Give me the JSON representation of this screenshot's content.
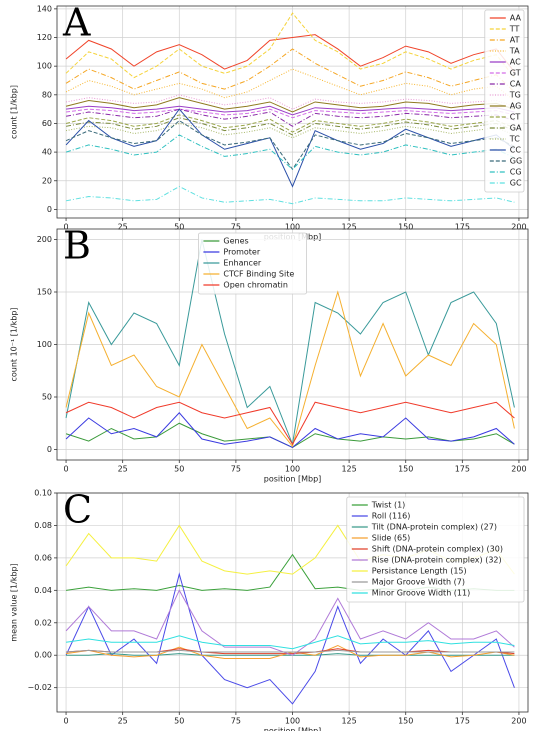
{
  "chart_data": [
    {
      "type": "line",
      "panel": "A",
      "xlabel": "position [Mbp]",
      "ylabel": "count [1/kbp]",
      "grid": true,
      "legend": "upper right",
      "x": [
        0,
        10,
        20,
        30,
        40,
        50,
        60,
        70,
        80,
        90,
        100,
        110,
        120,
        130,
        140,
        150,
        160,
        170,
        180,
        190,
        198
      ],
      "xlim": [
        -4,
        204
      ],
      "xticks": [
        0,
        25,
        50,
        75,
        100,
        125,
        150,
        175,
        200
      ],
      "ylim": [
        -6,
        142
      ],
      "yticks": [
        0,
        20,
        40,
        60,
        80,
        100,
        120,
        140
      ],
      "series": [
        {
          "name": "AA",
          "color": "#f0442a",
          "linestyle": "solid",
          "values": [
            105,
            118,
            112,
            100,
            110,
            115,
            108,
            98,
            104,
            118,
            120,
            122,
            112,
            100,
            106,
            114,
            110,
            102,
            108,
            112,
            96
          ]
        },
        {
          "name": "TT",
          "color": "#f5d33a",
          "linestyle": "dashed",
          "values": [
            95,
            110,
            105,
            92,
            100,
            112,
            100,
            95,
            100,
            112,
            137,
            118,
            110,
            98,
            102,
            110,
            105,
            98,
            104,
            108,
            92
          ]
        },
        {
          "name": "AT",
          "color": "#f5a623",
          "linestyle": "dashdot",
          "values": [
            88,
            98,
            92,
            84,
            90,
            96,
            88,
            84,
            90,
            100,
            112,
            102,
            94,
            86,
            90,
            96,
            92,
            86,
            90,
            94,
            82
          ]
        },
        {
          "name": "TA",
          "color": "#f7b733",
          "linestyle": "dotted",
          "values": [
            82,
            90,
            86,
            80,
            84,
            88,
            84,
            78,
            82,
            90,
            98,
            92,
            86,
            80,
            84,
            88,
            86,
            80,
            84,
            86,
            76
          ]
        },
        {
          "name": "AC",
          "color": "#9b3fc7",
          "linestyle": "solid",
          "values": [
            70,
            72,
            71,
            69,
            70,
            72,
            70,
            68,
            69,
            72,
            66,
            71,
            70,
            69,
            70,
            71,
            70,
            69,
            70,
            71,
            68
          ]
        },
        {
          "name": "GT",
          "color": "#d36ee8",
          "linestyle": "dashed",
          "values": [
            68,
            70,
            69,
            67,
            68,
            70,
            68,
            66,
            67,
            70,
            64,
            69,
            68,
            67,
            68,
            69,
            68,
            67,
            68,
            69,
            66
          ]
        },
        {
          "name": "CA",
          "color": "#8a2aa8",
          "linestyle": "dashdot",
          "values": [
            65,
            68,
            66,
            64,
            65,
            70,
            66,
            63,
            65,
            68,
            58,
            67,
            65,
            64,
            65,
            67,
            66,
            64,
            65,
            66,
            62
          ]
        },
        {
          "name": "TG",
          "color": "#e89ad4",
          "linestyle": "dotted",
          "values": [
            75,
            78,
            76,
            74,
            75,
            80,
            76,
            73,
            75,
            78,
            70,
            77,
            75,
            74,
            75,
            77,
            76,
            74,
            75,
            76,
            72
          ]
        },
        {
          "name": "AG",
          "color": "#8f7a20",
          "linestyle": "solid",
          "values": [
            72,
            76,
            74,
            71,
            73,
            78,
            74,
            70,
            72,
            75,
            68,
            75,
            73,
            71,
            72,
            75,
            74,
            71,
            73,
            74,
            70
          ]
        },
        {
          "name": "CT",
          "color": "#9aa64a",
          "linestyle": "dashed",
          "values": [
            60,
            64,
            62,
            58,
            60,
            66,
            62,
            57,
            59,
            63,
            54,
            62,
            60,
            58,
            60,
            63,
            61,
            58,
            60,
            62,
            57
          ]
        },
        {
          "name": "GA",
          "color": "#7a8a3a",
          "linestyle": "dashdot",
          "values": [
            58,
            61,
            60,
            56,
            58,
            64,
            60,
            55,
            57,
            60,
            52,
            60,
            58,
            56,
            58,
            61,
            59,
            56,
            58,
            60,
            55
          ]
        },
        {
          "name": "TC",
          "color": "#a8b86a",
          "linestyle": "dotted",
          "values": [
            55,
            58,
            57,
            53,
            55,
            60,
            57,
            52,
            54,
            57,
            50,
            57,
            55,
            53,
            55,
            58,
            56,
            53,
            55,
            57,
            52
          ]
        },
        {
          "name": "CC",
          "color": "#2a4fa8",
          "linestyle": "solid",
          "values": [
            45,
            62,
            50,
            44,
            48,
            70,
            52,
            42,
            46,
            50,
            16,
            55,
            48,
            42,
            46,
            56,
            50,
            44,
            48,
            52,
            42
          ]
        },
        {
          "name": "GG",
          "color": "#3a6a7a",
          "linestyle": "dashed",
          "values": [
            48,
            55,
            50,
            46,
            48,
            62,
            52,
            45,
            47,
            50,
            28,
            52,
            48,
            45,
            47,
            53,
            50,
            46,
            48,
            50,
            44
          ]
        },
        {
          "name": "CG",
          "color": "#30c0c0",
          "linestyle": "dashdot",
          "values": [
            40,
            45,
            42,
            38,
            40,
            52,
            44,
            37,
            39,
            42,
            28,
            44,
            40,
            38,
            40,
            45,
            42,
            38,
            40,
            42,
            36
          ]
        },
        {
          "name": "GC",
          "color": "#5ee0e0",
          "linestyle": "dashdot",
          "values": [
            6,
            9,
            8,
            6,
            7,
            16,
            8,
            5,
            6,
            7,
            4,
            8,
            7,
            6,
            6,
            8,
            7,
            6,
            7,
            8,
            5
          ]
        }
      ]
    },
    {
      "type": "line",
      "panel": "B",
      "xlabel": "position [Mbp]",
      "ylabel": "count 10⁻¹ [1/kbp]",
      "grid": true,
      "legend": "upper center",
      "x": [
        0,
        10,
        20,
        30,
        40,
        50,
        60,
        70,
        80,
        90,
        100,
        110,
        120,
        130,
        140,
        150,
        160,
        170,
        180,
        190,
        198
      ],
      "xlim": [
        -4,
        204
      ],
      "xticks": [
        0,
        25,
        50,
        75,
        100,
        125,
        150,
        175,
        200
      ],
      "ylim": [
        -10,
        210
      ],
      "yticks": [
        0,
        50,
        100,
        150,
        200
      ],
      "series": [
        {
          "name": "Genes",
          "color": "#3a9a3a",
          "linestyle": "solid",
          "values": [
            15,
            8,
            20,
            10,
            12,
            25,
            15,
            8,
            10,
            12,
            2,
            15,
            10,
            8,
            12,
            10,
            12,
            8,
            10,
            15,
            5
          ]
        },
        {
          "name": "Promoter",
          "color": "#3a3ae0",
          "linestyle": "solid",
          "values": [
            10,
            30,
            15,
            20,
            12,
            35,
            10,
            5,
            8,
            12,
            2,
            20,
            10,
            15,
            12,
            30,
            10,
            8,
            12,
            20,
            5
          ]
        },
        {
          "name": "Enhancer",
          "color": "#3a9a9a",
          "linestyle": "solid",
          "values": [
            30,
            140,
            100,
            130,
            120,
            80,
            200,
            110,
            40,
            60,
            5,
            140,
            130,
            110,
            140,
            150,
            90,
            140,
            150,
            120,
            40
          ]
        },
        {
          "name": "CTCF Binding Site",
          "color": "#f5b030",
          "linestyle": "solid",
          "values": [
            40,
            130,
            80,
            90,
            60,
            50,
            100,
            60,
            20,
            30,
            3,
            80,
            150,
            70,
            120,
            70,
            90,
            80,
            120,
            100,
            20
          ]
        },
        {
          "name": "Open chromatin",
          "color": "#f03a2a",
          "linestyle": "solid",
          "values": [
            35,
            45,
            40,
            30,
            40,
            45,
            35,
            30,
            35,
            40,
            5,
            45,
            40,
            35,
            40,
            45,
            40,
            35,
            40,
            45,
            30
          ]
        }
      ]
    },
    {
      "type": "line",
      "panel": "C",
      "xlabel": "position [Mbp]",
      "ylabel": "mean value [1/kbp]",
      "grid": true,
      "legend": "upper right",
      "x": [
        0,
        10,
        20,
        30,
        40,
        50,
        60,
        70,
        80,
        90,
        100,
        110,
        120,
        130,
        140,
        150,
        160,
        170,
        180,
        190,
        198
      ],
      "xlim": [
        -4,
        204
      ],
      "xticks": [
        0,
        25,
        50,
        75,
        100,
        125,
        150,
        175,
        200
      ],
      "ylim": [
        -0.035,
        0.1
      ],
      "yticks": [
        {
          "value": -0.02,
          "label": "−0.02"
        },
        {
          "value": 0,
          "label": "0.00"
        },
        0.02,
        0.04,
        0.06,
        0.08,
        {
          "value": 0.1,
          "label": "0.10"
        }
      ],
      "series": [
        {
          "name": "Twist (1)",
          "color": "#3aa03a",
          "linestyle": "solid",
          "values": [
            0.04,
            0.042,
            0.04,
            0.041,
            0.04,
            0.043,
            0.04,
            0.041,
            0.04,
            0.042,
            0.062,
            0.041,
            0.042,
            0.04,
            0.041,
            0.04,
            0.042,
            0.04,
            0.041,
            0.04,
            0.04
          ]
        },
        {
          "name": "Roll (116)",
          "color": "#4a4ae8",
          "linestyle": "solid",
          "values": [
            0.0,
            0.03,
            0.0,
            0.01,
            -0.005,
            0.05,
            0.0,
            -0.015,
            -0.02,
            -0.015,
            -0.03,
            -0.01,
            0.03,
            -0.005,
            0.01,
            0.0,
            0.015,
            -0.01,
            0.0,
            0.01,
            -0.02
          ]
        },
        {
          "name": "Tilt (DNA-protein complex) (27)",
          "color": "#3a9a8a",
          "linestyle": "solid",
          "values": [
            0.0,
            0.0,
            0.001,
            0.0,
            0.0,
            0.001,
            0.0,
            0.0,
            0.0,
            0.0,
            0.0,
            0.0,
            0.001,
            0.0,
            0.0,
            0.0,
            0.0,
            0.0,
            0.0,
            0.0,
            0.0
          ]
        },
        {
          "name": "Slide (65)",
          "color": "#f5a030",
          "linestyle": "solid",
          "values": [
            0.001,
            0.003,
            0.0,
            -0.001,
            0.0,
            0.005,
            0.0,
            -0.002,
            -0.002,
            -0.002,
            0.002,
            0.0,
            0.006,
            -0.001,
            0.0,
            0.0,
            0.002,
            -0.001,
            0.0,
            0.002,
            0.0
          ]
        },
        {
          "name": "Shift (DNA-protein complex) (30)",
          "color": "#e0402a",
          "linestyle": "solid",
          "values": [
            0.002,
            0.003,
            0.002,
            0.002,
            0.002,
            0.004,
            0.002,
            0.001,
            0.001,
            0.001,
            0.001,
            0.002,
            0.004,
            0.002,
            0.002,
            0.002,
            0.003,
            0.002,
            0.002,
            0.002,
            0.001
          ]
        },
        {
          "name": "Rise (DNA-protein complex) (32)",
          "color": "#b07ad8",
          "linestyle": "solid",
          "values": [
            0.015,
            0.03,
            0.015,
            0.015,
            0.01,
            0.04,
            0.015,
            0.005,
            0.005,
            0.005,
            0.0,
            0.01,
            0.035,
            0.01,
            0.015,
            0.01,
            0.02,
            0.01,
            0.01,
            0.015,
            0.005
          ]
        },
        {
          "name": "Persistance Length (15)",
          "color": "#f5f040",
          "linestyle": "solid",
          "values": [
            0.055,
            0.075,
            0.06,
            0.06,
            0.058,
            0.08,
            0.058,
            0.052,
            0.05,
            0.052,
            0.05,
            0.06,
            0.08,
            0.058,
            0.062,
            0.06,
            0.065,
            0.058,
            0.06,
            0.065,
            0.05
          ]
        },
        {
          "name": "Major Groove Width (7)",
          "color": "#9a9a9a",
          "linestyle": "solid",
          "values": [
            0.002,
            0.003,
            0.002,
            0.002,
            0.002,
            0.003,
            0.002,
            0.002,
            0.002,
            0.002,
            0.002,
            0.002,
            0.003,
            0.002,
            0.002,
            0.002,
            0.002,
            0.002,
            0.002,
            0.002,
            0.002
          ]
        },
        {
          "name": "Minor Groove Width (11)",
          "color": "#30e0e0",
          "linestyle": "solid",
          "values": [
            0.008,
            0.01,
            0.008,
            0.008,
            0.008,
            0.012,
            0.008,
            0.006,
            0.006,
            0.006,
            0.004,
            0.008,
            0.012,
            0.007,
            0.008,
            0.008,
            0.009,
            0.007,
            0.008,
            0.008,
            0.006
          ]
        }
      ]
    }
  ]
}
